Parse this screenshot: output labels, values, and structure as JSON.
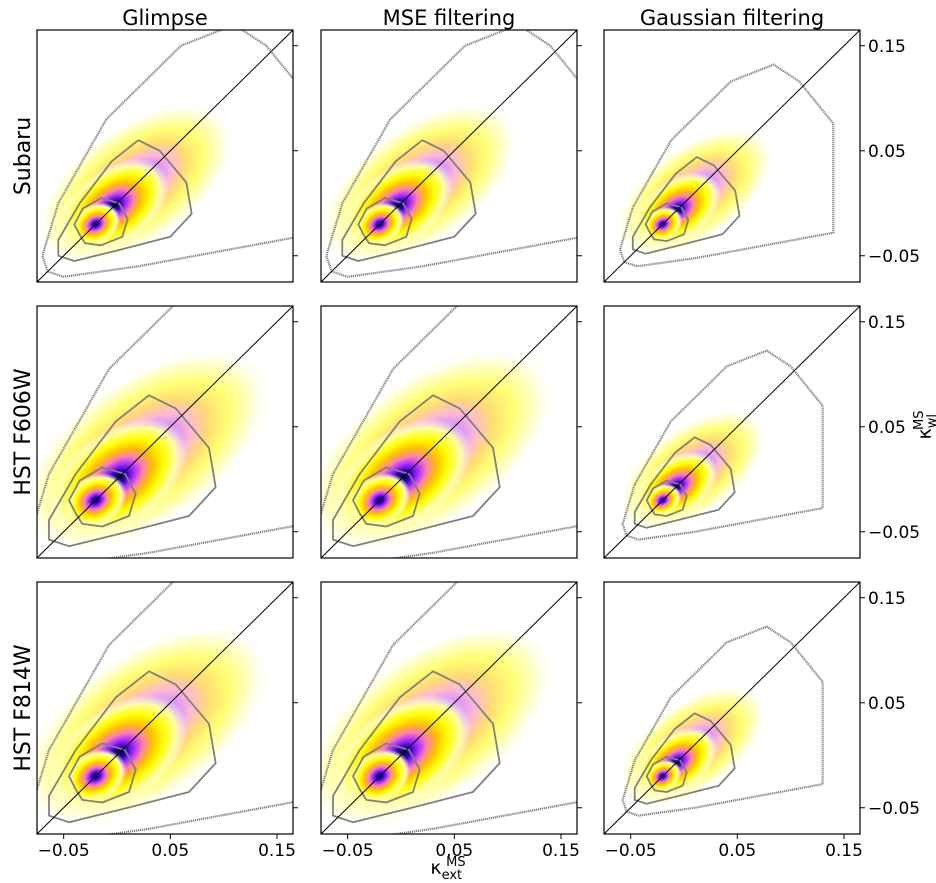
{
  "chart_data": {
    "type": "heatmap",
    "layout": "3x3 grid of density plots with contour lines and identity diagonal",
    "columns": [
      "Glimpse",
      "MSE filtering",
      "Gaussian filtering"
    ],
    "rows": [
      "Subaru",
      "HST F606W",
      "HST F814W"
    ],
    "xlabel": {
      "symbol": "κ",
      "sup": "MS",
      "sub": "ext"
    },
    "ylabel": {
      "symbol": "κ",
      "sup": "MS",
      "sub": "wl"
    },
    "xlim": [
      -0.075,
      0.165
    ],
    "ylim": [
      -0.075,
      0.165
    ],
    "xticks": [
      -0.05,
      0.05,
      0.15
    ],
    "xtick_labels": [
      "−0.05",
      "0.05",
      "0.15"
    ],
    "yticks": [
      -0.05,
      0.05,
      0.15
    ],
    "ytick_labels": [
      "−0.05",
      "0.05",
      "0.15"
    ],
    "diagonal": "y = x",
    "colormap": [
      "#ffffdd",
      "#ffff00",
      "#ffc800",
      "#ff8ca0",
      "#ff40ff",
      "#6000ff",
      "#000030"
    ],
    "contour_color": "#808080",
    "density_peak": {
      "x": -0.02,
      "y": -0.02
    },
    "panels": [
      {
        "row": "Subaru",
        "column": "Glimpse",
        "spread": 1.0,
        "y_shift": 0.0
      },
      {
        "row": "Subaru",
        "column": "MSE filtering",
        "spread": 1.0,
        "y_shift": 0.0
      },
      {
        "row": "Subaru",
        "column": "Gaussian filtering",
        "spread": 0.8,
        "y_shift": 0.0
      },
      {
        "row": "HST F606W",
        "column": "Glimpse",
        "spread": 1.25,
        "y_shift": 0.0
      },
      {
        "row": "HST F606W",
        "column": "MSE filtering",
        "spread": 1.25,
        "y_shift": 0.0
      },
      {
        "row": "HST F606W",
        "column": "Gaussian filtering",
        "spread": 0.75,
        "y_shift": 0.0
      },
      {
        "row": "HST F814W",
        "column": "Glimpse",
        "spread": 1.25,
        "y_shift": 0.0
      },
      {
        "row": "HST F814W",
        "column": "MSE filtering",
        "spread": 1.25,
        "y_shift": 0.0
      },
      {
        "row": "HST F814W",
        "column": "Gaussian filtering",
        "spread": 0.75,
        "y_shift": 0.0
      }
    ]
  }
}
